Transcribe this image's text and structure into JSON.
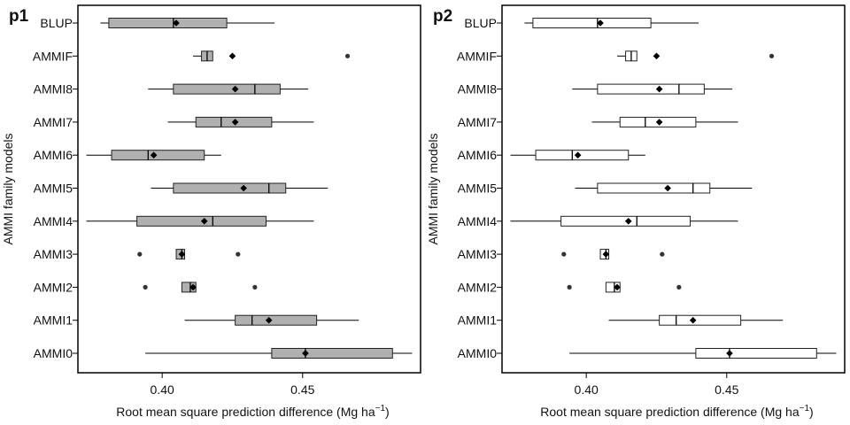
{
  "chart_data": [
    {
      "type": "box",
      "panel_label": "p1",
      "box_fill": "#b0b0b0",
      "xlabel": "Root mean square prediction difference (Mg ha",
      "xlabel_sup": "−1",
      "xlabel_close": ")",
      "ylabel": "AMMI family models",
      "xlim": [
        0.37,
        0.492
      ],
      "xticks": [
        0.4,
        0.45
      ],
      "xtick_labels": [
        "0.40",
        "0.45"
      ],
      "categories": [
        "BLUP",
        "AMMIF",
        "AMMI8",
        "AMMI7",
        "AMMI6",
        "AMMI5",
        "AMMI4",
        "AMMI3",
        "AMMI2",
        "AMMI1",
        "AMMI0"
      ],
      "series": [
        {
          "whisker_low": 0.378,
          "q1": 0.381,
          "median": 0.404,
          "q3": 0.423,
          "whisker_high": 0.44,
          "mean": 0.405,
          "outliers": []
        },
        {
          "whisker_low": 0.411,
          "q1": 0.414,
          "median": 0.416,
          "q3": 0.418,
          "whisker_high": 0.418,
          "mean": 0.425,
          "outliers": [
            0.466
          ]
        },
        {
          "whisker_low": 0.395,
          "q1": 0.404,
          "median": 0.433,
          "q3": 0.442,
          "whisker_high": 0.452,
          "mean": 0.426,
          "outliers": []
        },
        {
          "whisker_low": 0.402,
          "q1": 0.412,
          "median": 0.421,
          "q3": 0.439,
          "whisker_high": 0.454,
          "mean": 0.426,
          "outliers": []
        },
        {
          "whisker_low": 0.373,
          "q1": 0.382,
          "median": 0.395,
          "q3": 0.415,
          "whisker_high": 0.421,
          "mean": 0.397,
          "outliers": []
        },
        {
          "whisker_low": 0.396,
          "q1": 0.404,
          "median": 0.438,
          "q3": 0.444,
          "whisker_high": 0.459,
          "mean": 0.429,
          "outliers": []
        },
        {
          "whisker_low": 0.373,
          "q1": 0.391,
          "median": 0.418,
          "q3": 0.437,
          "whisker_high": 0.454,
          "mean": 0.415,
          "outliers": []
        },
        {
          "whisker_low": 0.405,
          "q1": 0.405,
          "median": 0.407,
          "q3": 0.408,
          "whisker_high": 0.408,
          "mean": 0.407,
          "outliers": [
            0.392,
            0.427
          ]
        },
        {
          "whisker_low": 0.407,
          "q1": 0.407,
          "median": 0.41,
          "q3": 0.412,
          "whisker_high": 0.412,
          "mean": 0.411,
          "outliers": [
            0.394,
            0.433
          ]
        },
        {
          "whisker_low": 0.408,
          "q1": 0.426,
          "median": 0.432,
          "q3": 0.455,
          "whisker_high": 0.47,
          "mean": 0.438,
          "outliers": []
        },
        {
          "whisker_low": 0.394,
          "q1": 0.439,
          "median": 0.451,
          "q3": 0.482,
          "whisker_high": 0.489,
          "mean": 0.451,
          "outliers": []
        }
      ]
    },
    {
      "type": "box",
      "panel_label": "p2",
      "box_fill": "#ffffff",
      "xlabel": "Root mean square prediction difference (Mg ha",
      "xlabel_sup": "−1",
      "xlabel_close": ")",
      "ylabel": "AMMI family models",
      "xlim": [
        0.37,
        0.492
      ],
      "xticks": [
        0.4,
        0.45
      ],
      "xtick_labels": [
        "0.40",
        "0.45"
      ],
      "categories": [
        "BLUP",
        "AMMIF",
        "AMMI8",
        "AMMI7",
        "AMMI6",
        "AMMI5",
        "AMMI4",
        "AMMI3",
        "AMMI2",
        "AMMI1",
        "AMMI0"
      ],
      "series": [
        {
          "whisker_low": 0.378,
          "q1": 0.381,
          "median": 0.404,
          "q3": 0.423,
          "whisker_high": 0.44,
          "mean": 0.405,
          "outliers": []
        },
        {
          "whisker_low": 0.411,
          "q1": 0.414,
          "median": 0.416,
          "q3": 0.418,
          "whisker_high": 0.418,
          "mean": 0.425,
          "outliers": [
            0.466
          ]
        },
        {
          "whisker_low": 0.395,
          "q1": 0.404,
          "median": 0.433,
          "q3": 0.442,
          "whisker_high": 0.452,
          "mean": 0.426,
          "outliers": []
        },
        {
          "whisker_low": 0.402,
          "q1": 0.412,
          "median": 0.421,
          "q3": 0.439,
          "whisker_high": 0.454,
          "mean": 0.426,
          "outliers": []
        },
        {
          "whisker_low": 0.373,
          "q1": 0.382,
          "median": 0.395,
          "q3": 0.415,
          "whisker_high": 0.421,
          "mean": 0.397,
          "outliers": []
        },
        {
          "whisker_low": 0.396,
          "q1": 0.404,
          "median": 0.438,
          "q3": 0.444,
          "whisker_high": 0.459,
          "mean": 0.429,
          "outliers": []
        },
        {
          "whisker_low": 0.373,
          "q1": 0.391,
          "median": 0.418,
          "q3": 0.437,
          "whisker_high": 0.454,
          "mean": 0.415,
          "outliers": []
        },
        {
          "whisker_low": 0.405,
          "q1": 0.405,
          "median": 0.407,
          "q3": 0.408,
          "whisker_high": 0.408,
          "mean": 0.407,
          "outliers": [
            0.392,
            0.427
          ]
        },
        {
          "whisker_low": 0.407,
          "q1": 0.407,
          "median": 0.41,
          "q3": 0.412,
          "whisker_high": 0.412,
          "mean": 0.411,
          "outliers": [
            0.394,
            0.433
          ]
        },
        {
          "whisker_low": 0.408,
          "q1": 0.426,
          "median": 0.432,
          "q3": 0.455,
          "whisker_high": 0.47,
          "mean": 0.438,
          "outliers": []
        },
        {
          "whisker_low": 0.394,
          "q1": 0.439,
          "median": 0.451,
          "q3": 0.482,
          "whisker_high": 0.489,
          "mean": 0.451,
          "outliers": []
        }
      ]
    }
  ]
}
